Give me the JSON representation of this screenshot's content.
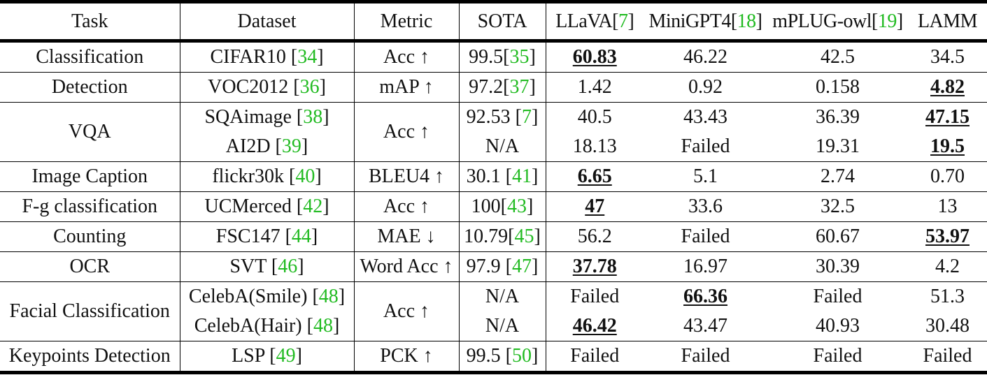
{
  "table": {
    "columns": [
      {
        "text": "Task"
      },
      {
        "text": "Dataset"
      },
      {
        "text": "Metric"
      },
      {
        "text": "SOTA"
      },
      {
        "text": "LLaVA",
        "cite": "7"
      },
      {
        "text": "MiniGPT4",
        "cite": "18"
      },
      {
        "text": "mPLUG-owl",
        "cite": "19"
      },
      {
        "text": "LAMM"
      }
    ],
    "rows": [
      {
        "task": "Classification",
        "dataset": "CIFAR10 ",
        "dataset_cite": "34",
        "metric": "Acc ↑",
        "sota": "99.5",
        "sota_cite": "35",
        "values": [
          "60.83",
          "46.22",
          "42.5",
          "34.5"
        ],
        "best": 0
      },
      {
        "task": "Detection",
        "dataset": "VOC2012 ",
        "dataset_cite": "36",
        "metric": "mAP ↑",
        "sota": "97.2",
        "sota_cite": "37",
        "values": [
          "1.42",
          "0.92",
          "0.158",
          "4.82"
        ],
        "best": 3
      },
      {
        "task": "VQA",
        "dataset": "SQAimage ",
        "dataset_cite": "38",
        "metric": "Acc ↑",
        "sota": "92.53 ",
        "sota_cite": "7",
        "values": [
          "40.5",
          "43.43",
          "36.39",
          "47.15"
        ],
        "best": 3
      },
      {
        "task": "",
        "dataset": "AI2D ",
        "dataset_cite": "39",
        "metric": "",
        "sota": "N/A",
        "sota_cite": "",
        "values": [
          "18.13",
          "Failed",
          "19.31",
          "19.5"
        ],
        "best": 3
      },
      {
        "task": "Image Caption",
        "dataset": "flickr30k ",
        "dataset_cite": "40",
        "metric": "BLEU4 ↑",
        "sota": "30.1 ",
        "sota_cite": "41",
        "values": [
          "6.65",
          "5.1",
          "2.74",
          "0.70"
        ],
        "best": 0
      },
      {
        "task": "F-g classification",
        "dataset": "UCMerced ",
        "dataset_cite": "42",
        "metric": "Acc ↑",
        "sota": "100",
        "sota_cite": "43",
        "values": [
          "47",
          "33.6",
          "32.5",
          "13"
        ],
        "best": 0
      },
      {
        "task": "Counting",
        "dataset": "FSC147 ",
        "dataset_cite": "44",
        "metric": "MAE ↓",
        "sota": "10.79",
        "sota_cite": "45",
        "values": [
          "56.2",
          "Failed",
          "60.67",
          "53.97"
        ],
        "best": 3
      },
      {
        "task": "OCR",
        "dataset": "SVT ",
        "dataset_cite": "46",
        "metric": "Word Acc ↑",
        "sota": "97.9 ",
        "sota_cite": "47",
        "values": [
          "37.78",
          "16.97",
          "30.39",
          "4.2"
        ],
        "best": 0
      },
      {
        "task": "Facial Classification",
        "dataset": "CelebA(Smile) ",
        "dataset_cite": "48",
        "metric": "Acc ↑",
        "sota": "N/A",
        "sota_cite": "",
        "values": [
          "Failed",
          "66.36",
          "Failed",
          "51.3"
        ],
        "best": 1
      },
      {
        "task": "",
        "dataset": "CelebA(Hair) ",
        "dataset_cite": "48",
        "metric": "",
        "sota": "N/A",
        "sota_cite": "",
        "values": [
          "46.42",
          "43.47",
          "40.93",
          "30.48"
        ],
        "best": 0
      },
      {
        "task": "Keypoints Detection",
        "dataset": "LSP ",
        "dataset_cite": "49",
        "metric": "PCK ↑",
        "sota": "99.5 ",
        "sota_cite": "50",
        "values": [
          "Failed",
          "Failed",
          "Failed",
          "Failed"
        ],
        "best": -1
      }
    ]
  },
  "colors": {
    "citation": "#22bb22",
    "text": "#111111",
    "rules": "#000000"
  }
}
